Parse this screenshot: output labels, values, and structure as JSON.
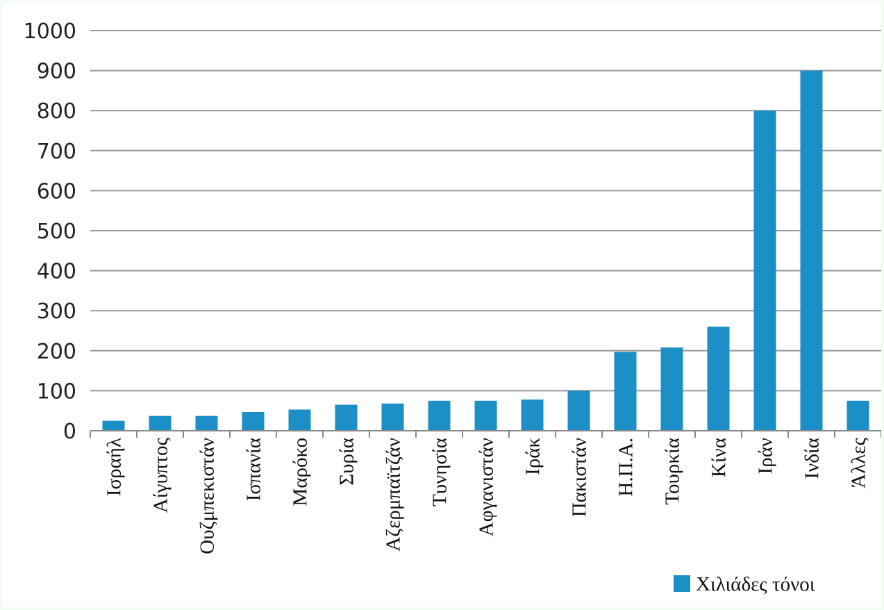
{
  "chart_data": {
    "type": "bar",
    "title": "",
    "xlabel": "",
    "ylabel": "",
    "categories": [
      "Ισραήλ",
      "Αίγυπτος",
      "Ουζμπεκιστάν",
      "Ισπανία",
      "Μαρόκο",
      "Συρία",
      "Αζερμπαϊτζάν",
      "Τυνησία",
      "Αφγανιστάν",
      "Ιράκ",
      "Πακιστάν",
      "Η.Π.Α.",
      "Τουρκία",
      "Κίνα",
      "Ιράν",
      "Ινδία",
      "Άλλες"
    ],
    "series": [
      {
        "name": "Χιλιάδες τόνοι",
        "color": "#1b8fc6",
        "values": [
          25,
          37,
          37,
          47,
          53,
          65,
          68,
          75,
          75,
          78,
          100,
          197,
          208,
          260,
          800,
          900,
          75
        ]
      }
    ],
    "ylim": [
      0,
      1000
    ],
    "yticks": [
      0,
      100,
      200,
      300,
      400,
      500,
      600,
      700,
      800,
      900,
      1000
    ],
    "ytick_labels": [
      "0",
      "100",
      "200",
      "300",
      "400",
      "500",
      "600",
      "700",
      "800",
      "900",
      "1000"
    ],
    "grid": true,
    "legend_position": "bottom-right",
    "colors": {
      "bar": "#1b8fc6",
      "grid": "#999999",
      "axis": "#888888",
      "background": "#ffffff",
      "border": "#f3fcf3"
    }
  }
}
